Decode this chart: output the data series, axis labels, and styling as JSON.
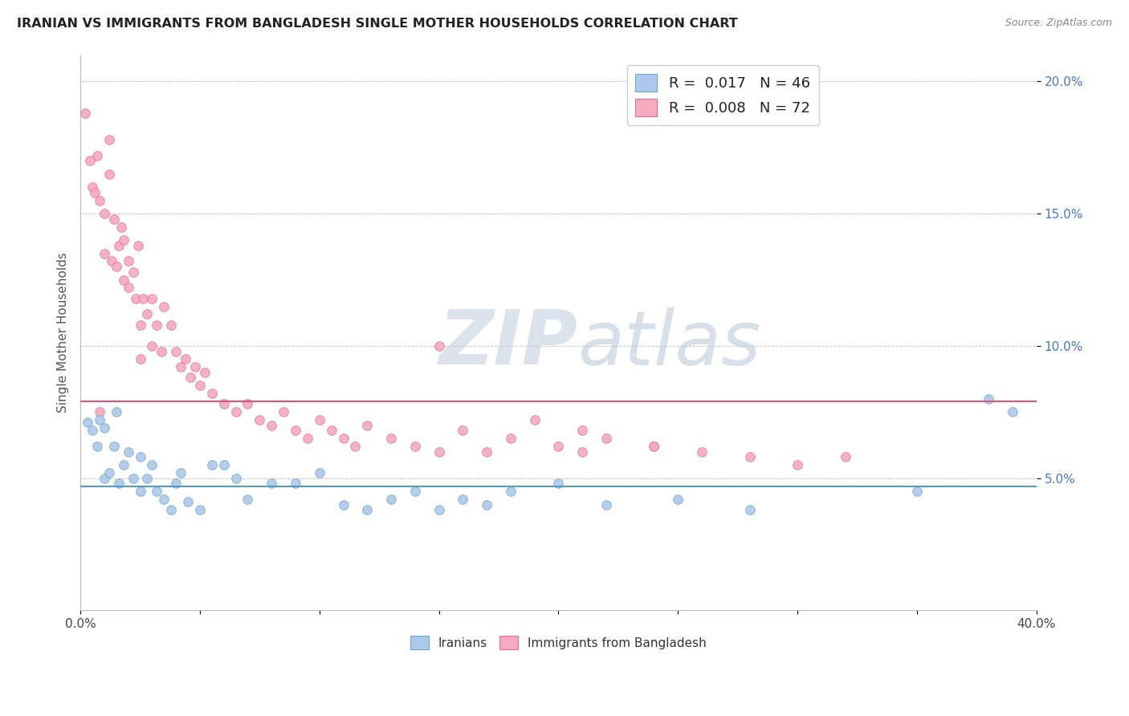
{
  "title": "IRANIAN VS IMMIGRANTS FROM BANGLADESH SINGLE MOTHER HOUSEHOLDS CORRELATION CHART",
  "source": "Source: ZipAtlas.com",
  "ylabel": "Single Mother Households",
  "xmin": 0.0,
  "xmax": 0.4,
  "ymin": 0.0,
  "ymax": 0.21,
  "yticks": [
    0.05,
    0.1,
    0.15,
    0.2
  ],
  "ytick_labels": [
    "5.0%",
    "10.0%",
    "15.0%",
    "20.0%"
  ],
  "iranians_R": "0.017",
  "iranians_N": "46",
  "bangladesh_R": "0.008",
  "bangladesh_N": "72",
  "iranians_color": "#adc8e8",
  "iranians_edge_color": "#6aaad4",
  "bangladesh_color": "#f5aabf",
  "bangladesh_edge_color": "#e87090",
  "iranians_hline_y": 0.047,
  "bangladesh_hline_y": 0.079,
  "iranians_hline_color": "#5599cc",
  "bangladesh_hline_color": "#dd5577",
  "watermark_zip": "ZIP",
  "watermark_atlas": "atlas",
  "watermark_color_zip": "#c8d4e8",
  "watermark_color_atlas": "#b0c4d8",
  "iranians_scatter_x": [
    0.003,
    0.005,
    0.007,
    0.008,
    0.01,
    0.01,
    0.012,
    0.014,
    0.015,
    0.016,
    0.018,
    0.02,
    0.022,
    0.025,
    0.025,
    0.028,
    0.03,
    0.032,
    0.035,
    0.038,
    0.04,
    0.042,
    0.045,
    0.05,
    0.055,
    0.06,
    0.065,
    0.07,
    0.08,
    0.09,
    0.1,
    0.11,
    0.12,
    0.13,
    0.14,
    0.15,
    0.16,
    0.17,
    0.18,
    0.2,
    0.22,
    0.25,
    0.28,
    0.35,
    0.38,
    0.39
  ],
  "iranians_scatter_y": [
    0.071,
    0.068,
    0.062,
    0.072,
    0.069,
    0.05,
    0.052,
    0.062,
    0.075,
    0.048,
    0.055,
    0.06,
    0.05,
    0.045,
    0.058,
    0.05,
    0.055,
    0.045,
    0.042,
    0.038,
    0.048,
    0.052,
    0.041,
    0.038,
    0.055,
    0.055,
    0.05,
    0.042,
    0.048,
    0.048,
    0.052,
    0.04,
    0.038,
    0.042,
    0.045,
    0.038,
    0.042,
    0.04,
    0.045,
    0.048,
    0.04,
    0.042,
    0.038,
    0.045,
    0.08,
    0.075
  ],
  "bangladesh_scatter_x": [
    0.002,
    0.004,
    0.005,
    0.006,
    0.007,
    0.008,
    0.01,
    0.01,
    0.012,
    0.012,
    0.013,
    0.014,
    0.015,
    0.016,
    0.017,
    0.018,
    0.018,
    0.02,
    0.02,
    0.022,
    0.023,
    0.024,
    0.025,
    0.026,
    0.028,
    0.03,
    0.03,
    0.032,
    0.034,
    0.035,
    0.038,
    0.04,
    0.042,
    0.044,
    0.046,
    0.048,
    0.05,
    0.052,
    0.055,
    0.06,
    0.065,
    0.07,
    0.075,
    0.08,
    0.085,
    0.09,
    0.095,
    0.1,
    0.105,
    0.11,
    0.115,
    0.12,
    0.13,
    0.14,
    0.15,
    0.16,
    0.17,
    0.18,
    0.2,
    0.21,
    0.22,
    0.24,
    0.26,
    0.28,
    0.19,
    0.21,
    0.24,
    0.3,
    0.32,
    0.008,
    0.025,
    0.15
  ],
  "bangladesh_scatter_y": [
    0.188,
    0.17,
    0.16,
    0.158,
    0.172,
    0.155,
    0.15,
    0.135,
    0.165,
    0.178,
    0.132,
    0.148,
    0.13,
    0.138,
    0.145,
    0.125,
    0.14,
    0.122,
    0.132,
    0.128,
    0.118,
    0.138,
    0.108,
    0.118,
    0.112,
    0.1,
    0.118,
    0.108,
    0.098,
    0.115,
    0.108,
    0.098,
    0.092,
    0.095,
    0.088,
    0.092,
    0.085,
    0.09,
    0.082,
    0.078,
    0.075,
    0.078,
    0.072,
    0.07,
    0.075,
    0.068,
    0.065,
    0.072,
    0.068,
    0.065,
    0.062,
    0.07,
    0.065,
    0.062,
    0.06,
    0.068,
    0.06,
    0.065,
    0.062,
    0.06,
    0.065,
    0.062,
    0.06,
    0.058,
    0.072,
    0.068,
    0.062,
    0.055,
    0.058,
    0.075,
    0.095,
    0.1
  ]
}
